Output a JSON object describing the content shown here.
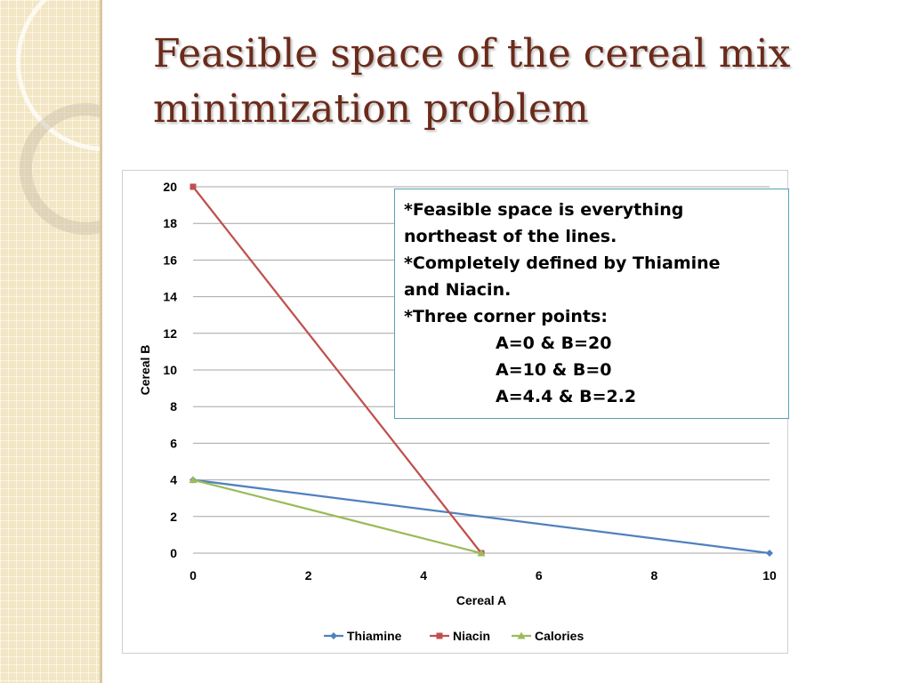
{
  "slide": {
    "title_line1": "Feasible space of the cereal mix",
    "title_line2": "minimization problem",
    "title_color": "#6b2a1a"
  },
  "note": {
    "lines": [
      "*Feasible space is everything",
      "northeast of the lines.",
      "*Completely defined by Thiamine",
      "and Niacin.",
      "*Three corner points:",
      "A=0 & B=20",
      "A=10 & B=0",
      "A=4.4 & B=2.2"
    ]
  },
  "chart_data": {
    "type": "line",
    "title": "",
    "xlabel": "Cereal A",
    "ylabel": "Cereal B",
    "xlim": [
      0,
      10
    ],
    "ylim": [
      0,
      20
    ],
    "xticks": [
      0,
      2,
      4,
      6,
      8,
      10
    ],
    "yticks": [
      0,
      2,
      4,
      6,
      8,
      10,
      12,
      14,
      16,
      18,
      20
    ],
    "grid": "horizontal",
    "legend": "bottom",
    "series": [
      {
        "name": "Thiamine",
        "color": "#4f81bd",
        "marker": "diamond",
        "points": [
          [
            0,
            4
          ],
          [
            10,
            0
          ]
        ]
      },
      {
        "name": "Niacin",
        "color": "#c0504d",
        "marker": "square",
        "points": [
          [
            0,
            20
          ],
          [
            5,
            0
          ]
        ]
      },
      {
        "name": "Calories",
        "color": "#9bbb59",
        "marker": "triangle",
        "points": [
          [
            0,
            4
          ],
          [
            5,
            0
          ]
        ]
      }
    ]
  }
}
